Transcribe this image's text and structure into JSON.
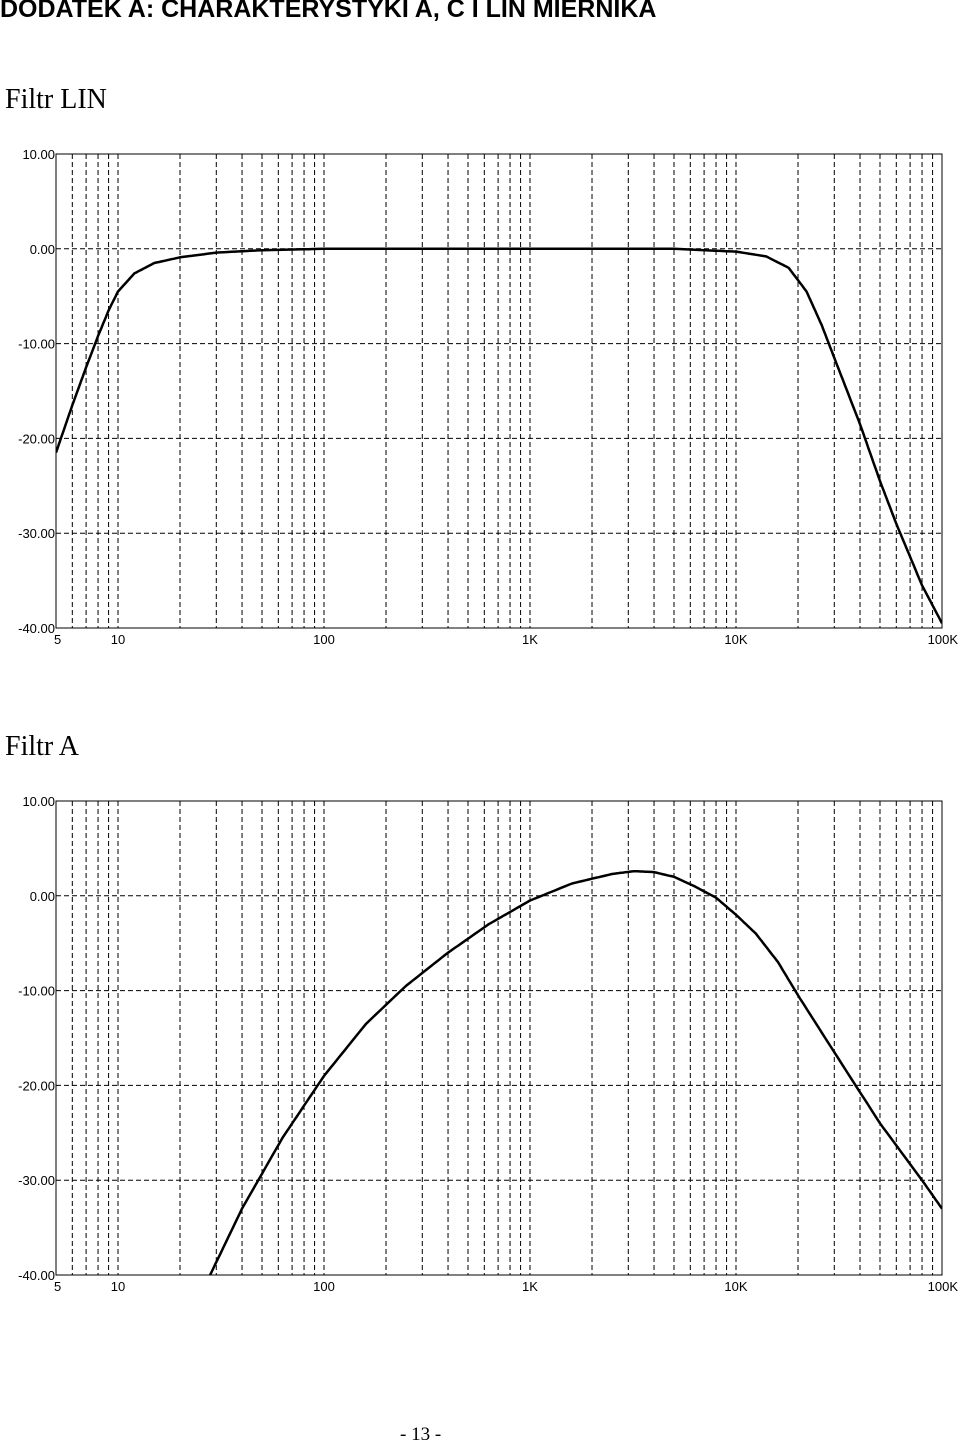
{
  "page": {
    "heading": "DODATEK A: CHARAKTERYSTYKI A, C I LIN MIERNIKA",
    "page_number": "- 13 -"
  },
  "sections": [
    {
      "title": "Filtr LIN"
    },
    {
      "title": "Filtr A"
    }
  ],
  "chart_data": [
    {
      "type": "line",
      "title": "Filtr LIN",
      "xscale": "log",
      "xlim": [
        5,
        100000
      ],
      "ylim": [
        -40,
        10
      ],
      "grid": true,
      "x_tick_values": [
        5,
        10,
        100,
        1000,
        10000,
        100000
      ],
      "x_tick_labels": [
        "5",
        "10",
        "100",
        "1K",
        "10K",
        "100K"
      ],
      "y_tick_values": [
        10,
        0,
        -10,
        -20,
        -30,
        -40
      ],
      "y_tick_labels": [
        "10.00",
        "0.00",
        "-10.00",
        "-20.00",
        "-30.00",
        "-40.00"
      ],
      "series": [
        {
          "x": [
            5,
            6,
            7,
            8,
            9,
            10,
            12,
            15,
            20,
            30,
            50,
            100,
            200,
            500,
            1000,
            2000,
            5000,
            10000,
            14000,
            18000,
            22000,
            26000,
            30000,
            40000,
            50000,
            60000,
            80000,
            100000
          ],
          "y": [
            -21.5,
            -16.5,
            -12.5,
            -9.2,
            -6.5,
            -4.5,
            -2.6,
            -1.5,
            -0.9,
            -0.4,
            -0.15,
            0,
            0,
            0,
            0,
            0,
            0,
            -0.3,
            -0.8,
            -2.0,
            -4.5,
            -8.0,
            -11.5,
            -18.5,
            -24.5,
            -29.0,
            -35.5,
            -39.5
          ]
        }
      ]
    },
    {
      "type": "line",
      "title": "Filtr A",
      "xscale": "log",
      "xlim": [
        5,
        100000
      ],
      "ylim": [
        -40,
        10
      ],
      "grid": true,
      "x_tick_values": [
        5,
        10,
        100,
        1000,
        10000,
        100000
      ],
      "x_tick_labels": [
        "5",
        "10",
        "100",
        "1K",
        "10K",
        "100K"
      ],
      "y_tick_values": [
        10,
        0,
        -10,
        -20,
        -30,
        -40
      ],
      "y_tick_labels": [
        "10.00",
        "0.00",
        "-10.00",
        "-20.00",
        "-30.00",
        "-40.00"
      ],
      "series": [
        {
          "x": [
            28,
            40,
            63,
            100,
            160,
            250,
            400,
            630,
            1000,
            1600,
            2500,
            3200,
            4000,
            5000,
            6300,
            8000,
            10000,
            12500,
            16000,
            20000,
            30000,
            50000,
            80000,
            100000
          ],
          "y": [
            -40,
            -33,
            -25.5,
            -19.0,
            -13.5,
            -9.5,
            -6.0,
            -3.0,
            -0.5,
            1.3,
            2.3,
            2.6,
            2.5,
            2.0,
            1.0,
            -0.2,
            -2.0,
            -4.0,
            -7.0,
            -10.5,
            -16.5,
            -24.0,
            -30.0,
            -33.0
          ]
        }
      ]
    }
  ]
}
